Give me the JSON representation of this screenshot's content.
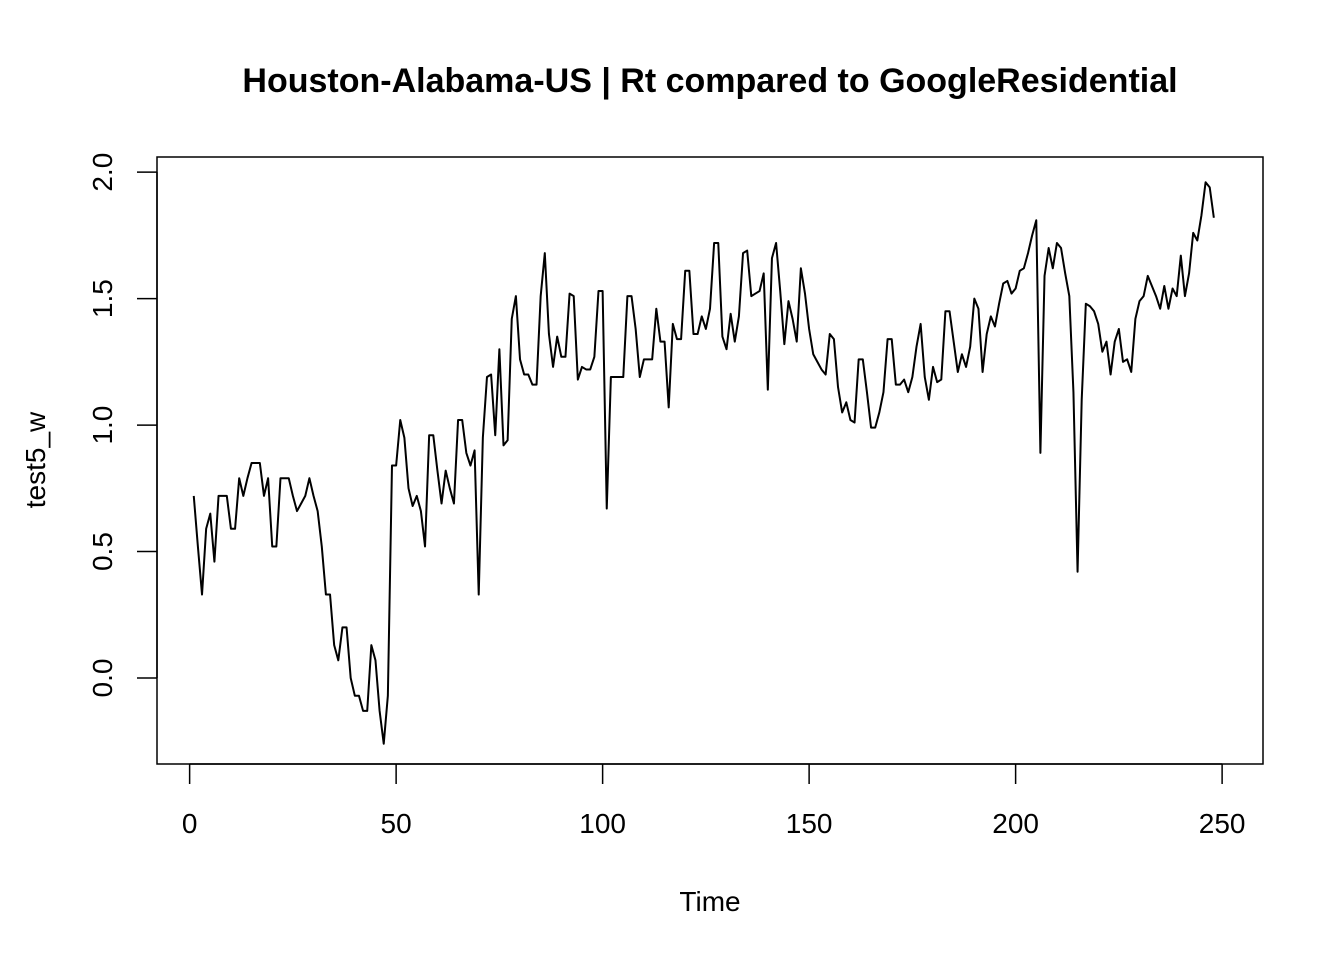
{
  "chart_data": {
    "type": "line",
    "title": "Houston-Alabama-US | Rt compared to GoogleResidential",
    "xlabel": "Time",
    "ylabel": "test5_w",
    "xlim": [
      -7.9,
      259.9
    ],
    "ylim": [
      -0.34,
      2.06
    ],
    "x_ticks": [
      0,
      50,
      100,
      150,
      200,
      250
    ],
    "x_tick_labels": [
      "0",
      "50",
      "100",
      "150",
      "200",
      "250"
    ],
    "y_ticks": [
      0.0,
      0.5,
      1.0,
      1.5,
      2.0
    ],
    "y_tick_labels": [
      "0.0",
      "0.5",
      "1.0",
      "1.5",
      "2.0"
    ],
    "grid": false,
    "legend": "none",
    "line_color": "#000000",
    "series": [
      {
        "x_start": 1,
        "values": [
          0.72,
          0.52,
          0.33,
          0.59,
          0.65,
          0.46,
          0.72,
          0.72,
          0.72,
          0.59,
          0.59,
          0.79,
          0.72,
          0.79,
          0.85,
          0.85,
          0.85,
          0.72,
          0.79,
          0.52,
          0.52,
          0.79,
          0.79,
          0.79,
          0.72,
          0.66,
          0.69,
          0.72,
          0.79,
          0.72,
          0.66,
          0.52,
          0.33,
          0.33,
          0.13,
          0.07,
          0.2,
          0.2,
          0.0,
          -0.07,
          -0.07,
          -0.13,
          -0.13,
          0.13,
          0.07,
          -0.13,
          -0.26,
          -0.07,
          0.84,
          0.84,
          1.02,
          0.95,
          0.75,
          0.68,
          0.72,
          0.66,
          0.52,
          0.96,
          0.96,
          0.82,
          0.69,
          0.82,
          0.75,
          0.69,
          1.02,
          1.02,
          0.89,
          0.84,
          0.9,
          0.33,
          0.95,
          1.19,
          1.2,
          0.96,
          1.3,
          0.92,
          0.94,
          1.42,
          1.51,
          1.26,
          1.2,
          1.2,
          1.16,
          1.16,
          1.51,
          1.68,
          1.36,
          1.23,
          1.35,
          1.27,
          1.27,
          1.52,
          1.51,
          1.18,
          1.23,
          1.22,
          1.22,
          1.27,
          1.53,
          1.53,
          0.67,
          1.19,
          1.19,
          1.19,
          1.19,
          1.51,
          1.51,
          1.38,
          1.19,
          1.26,
          1.26,
          1.26,
          1.46,
          1.33,
          1.33,
          1.07,
          1.4,
          1.34,
          1.34,
          1.61,
          1.61,
          1.36,
          1.36,
          1.43,
          1.38,
          1.46,
          1.72,
          1.72,
          1.35,
          1.3,
          1.44,
          1.33,
          1.43,
          1.68,
          1.69,
          1.51,
          1.52,
          1.53,
          1.6,
          1.14,
          1.66,
          1.72,
          1.53,
          1.32,
          1.49,
          1.42,
          1.33,
          1.62,
          1.52,
          1.38,
          1.28,
          1.25,
          1.22,
          1.2,
          1.36,
          1.34,
          1.15,
          1.05,
          1.09,
          1.02,
          1.01,
          1.26,
          1.26,
          1.13,
          0.99,
          0.99,
          1.05,
          1.13,
          1.34,
          1.34,
          1.16,
          1.16,
          1.18,
          1.13,
          1.19,
          1.31,
          1.4,
          1.19,
          1.1,
          1.23,
          1.17,
          1.18,
          1.45,
          1.45,
          1.33,
          1.21,
          1.28,
          1.23,
          1.31,
          1.5,
          1.46,
          1.21,
          1.36,
          1.43,
          1.39,
          1.48,
          1.56,
          1.57,
          1.52,
          1.54,
          1.61,
          1.62,
          1.68,
          1.75,
          1.81,
          0.89,
          1.59,
          1.7,
          1.62,
          1.72,
          1.7,
          1.6,
          1.51,
          1.13,
          0.42,
          1.1,
          1.48,
          1.47,
          1.45,
          1.4,
          1.29,
          1.33,
          1.2,
          1.33,
          1.38,
          1.25,
          1.26,
          1.21,
          1.42,
          1.49,
          1.51,
          1.59,
          1.55,
          1.51,
          1.46,
          1.55,
          1.46,
          1.54,
          1.51,
          1.67,
          1.51,
          1.6,
          1.76,
          1.73,
          1.83,
          1.96,
          1.94,
          1.82
        ]
      }
    ]
  }
}
